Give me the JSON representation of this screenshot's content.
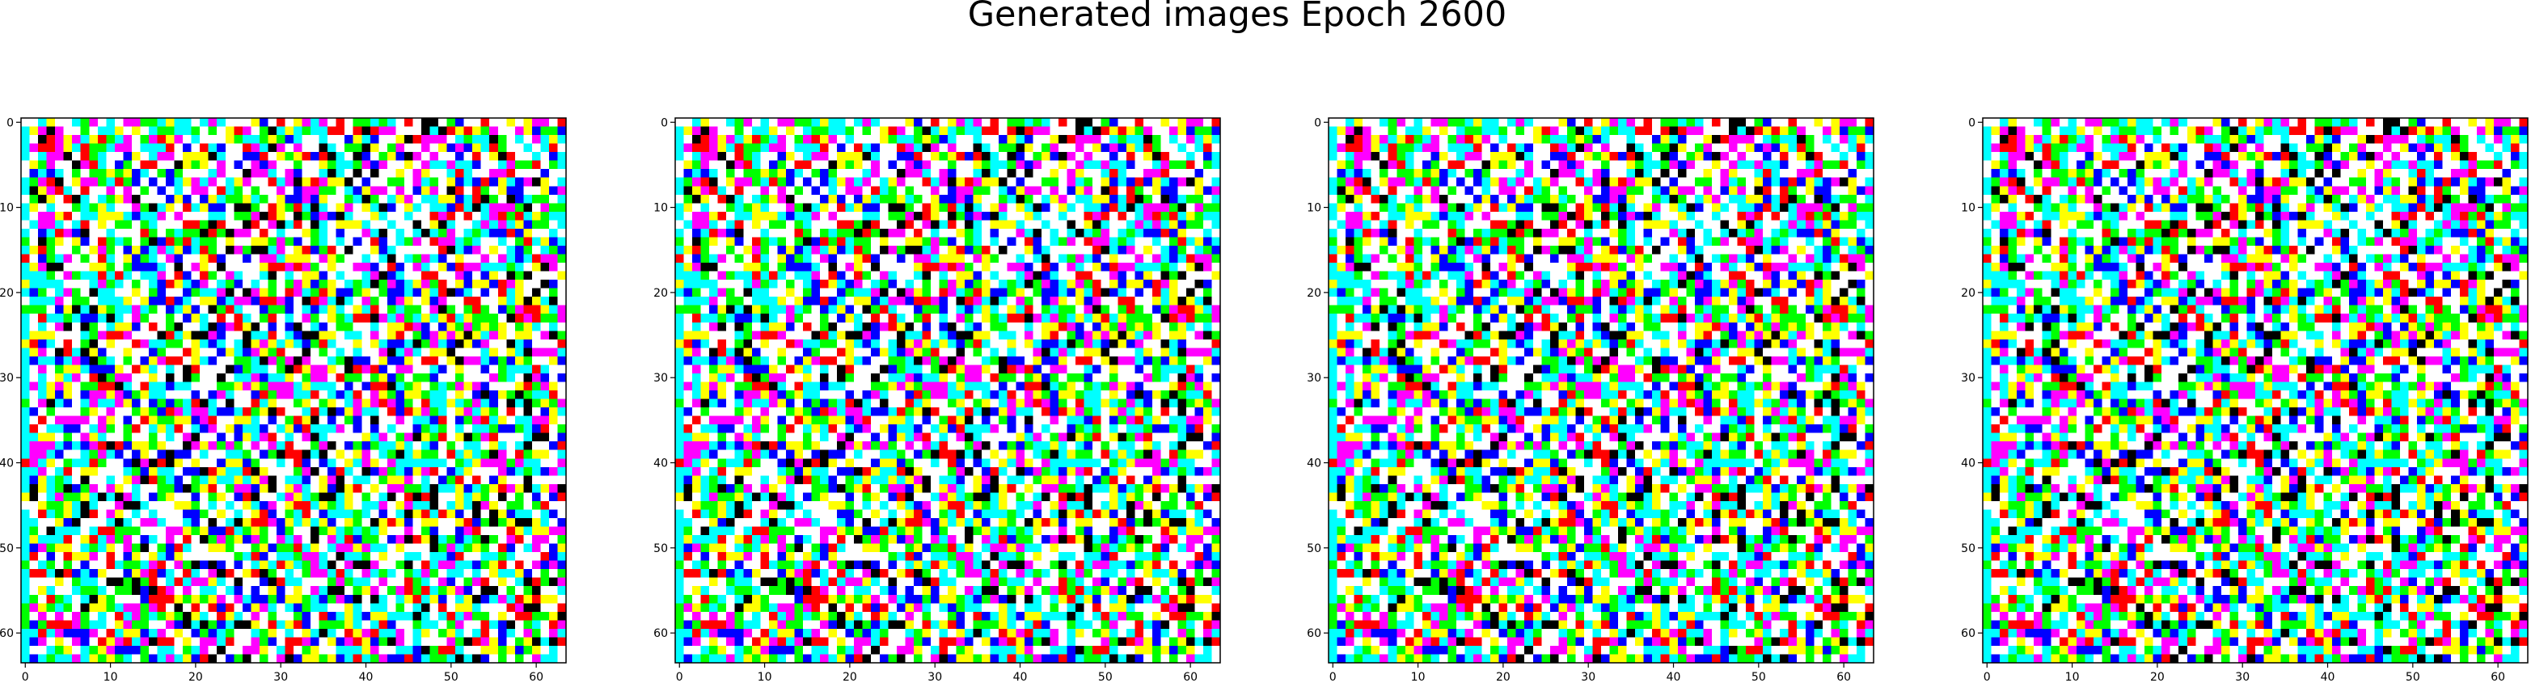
{
  "figure": {
    "suptitle": "Generated images Epoch 2600"
  },
  "chart_data": [
    {
      "type": "heatmap",
      "panel": 1,
      "grid_size": [
        64,
        64
      ],
      "palette": [
        "#ffffff",
        "#00ffff",
        "#ff00ff",
        "#ffff00",
        "#00ff00",
        "#0000ff",
        "#ff0000",
        "#000000"
      ],
      "xlim": [
        0,
        63
      ],
      "ylim": [
        63,
        0
      ],
      "x_ticks": [
        "0",
        "10",
        "20",
        "30",
        "40",
        "50",
        "60"
      ],
      "y_ticks": [
        "0",
        "10",
        "20",
        "30",
        "40",
        "50",
        "60"
      ]
    },
    {
      "type": "heatmap",
      "panel": 2,
      "grid_size": [
        64,
        64
      ],
      "palette": [
        "#ffffff",
        "#00ffff",
        "#ff00ff",
        "#ffff00",
        "#00ff00",
        "#0000ff",
        "#ff0000",
        "#000000"
      ],
      "xlim": [
        0,
        63
      ],
      "ylim": [
        63,
        0
      ],
      "x_ticks": [
        "0",
        "10",
        "20",
        "30",
        "40",
        "50",
        "60"
      ],
      "y_ticks": [
        "0",
        "10",
        "20",
        "30",
        "40",
        "50",
        "60"
      ]
    },
    {
      "type": "heatmap",
      "panel": 3,
      "grid_size": [
        64,
        64
      ],
      "palette": [
        "#ffffff",
        "#00ffff",
        "#ff00ff",
        "#ffff00",
        "#00ff00",
        "#0000ff",
        "#ff0000",
        "#000000"
      ],
      "xlim": [
        0,
        63
      ],
      "ylim": [
        63,
        0
      ],
      "x_ticks": [
        "0",
        "10",
        "20",
        "30",
        "40",
        "50",
        "60"
      ],
      "y_ticks": [
        "0",
        "10",
        "20",
        "30",
        "40",
        "50",
        "60"
      ]
    },
    {
      "type": "heatmap",
      "panel": 4,
      "grid_size": [
        64,
        64
      ],
      "palette": [
        "#ffffff",
        "#00ffff",
        "#ff00ff",
        "#ffff00",
        "#00ff00",
        "#0000ff",
        "#ff0000",
        "#000000"
      ],
      "xlim": [
        0,
        63
      ],
      "ylim": [
        63,
        0
      ],
      "x_ticks": [
        "0",
        "10",
        "20",
        "30",
        "40",
        "50",
        "60"
      ],
      "y_ticks": [
        "0",
        "10",
        "20",
        "30",
        "40",
        "50",
        "60"
      ]
    }
  ]
}
